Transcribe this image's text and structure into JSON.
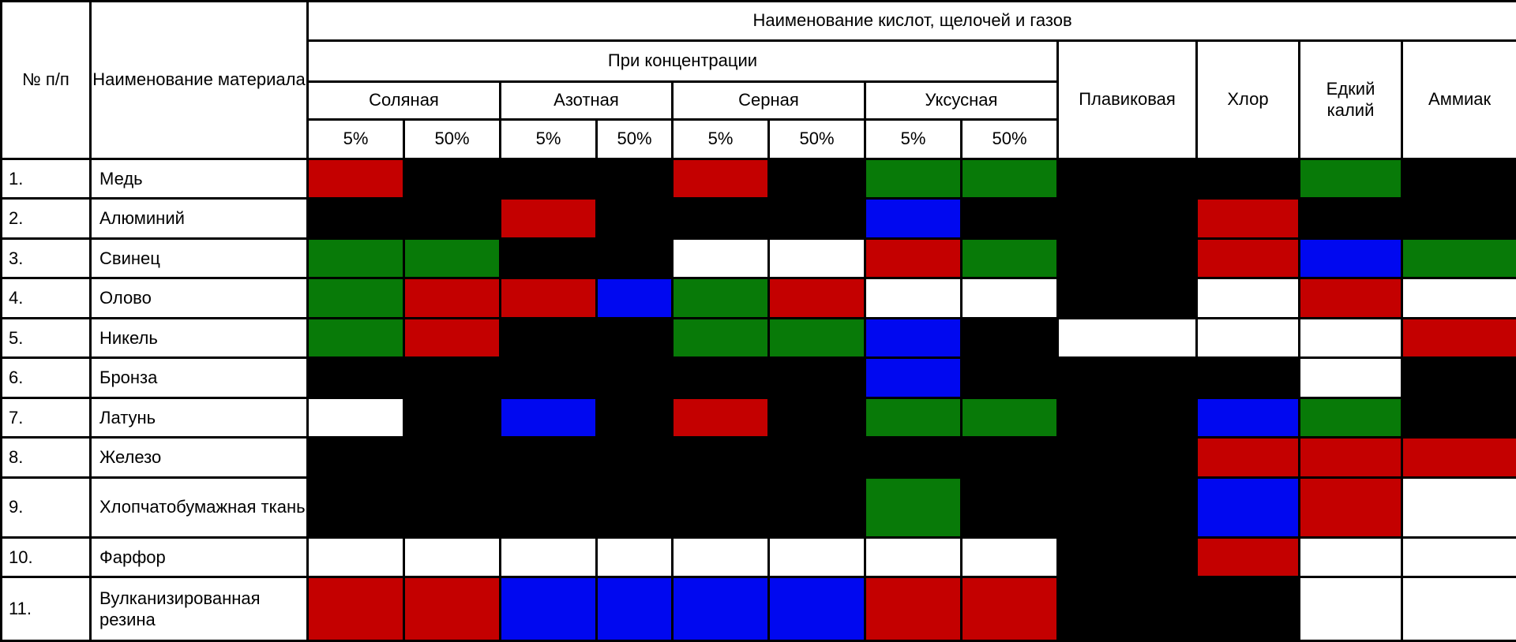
{
  "header": {
    "num": "№ п/п",
    "material": "Наименование материала",
    "group": "Наименование кислот, щелочей и газов",
    "concentration": "При концентрации",
    "acids": [
      "Соляная",
      "Азотная",
      "Серная",
      "Уксусная"
    ],
    "percents": [
      "5%",
      "50%",
      "5%",
      "50%",
      "5%",
      "50%",
      "5%",
      "50%"
    ],
    "other": [
      "Плавиковая",
      "Хлор",
      "Едкий калий",
      "Аммиак"
    ]
  },
  "colors": {
    "black": "#000000",
    "white": "#ffffff",
    "red": "#c40000",
    "green": "#087a08",
    "blue": "#0008f0"
  },
  "rows": [
    {
      "num": "1.",
      "material": "Медь",
      "cells": [
        "red",
        "black",
        "black",
        "black",
        "red",
        "black",
        "green",
        "green",
        "black",
        "black",
        "green",
        "black"
      ]
    },
    {
      "num": "2.",
      "material": "Алюминий",
      "cells": [
        "black",
        "black",
        "red",
        "black",
        "black",
        "black",
        "blue",
        "black",
        "black",
        "red",
        "black",
        "black"
      ]
    },
    {
      "num": "3.",
      "material": "Свинец",
      "cells": [
        "green",
        "green",
        "black",
        "black",
        "white",
        "white",
        "red",
        "green",
        "black",
        "red",
        "blue",
        "green"
      ]
    },
    {
      "num": "4.",
      "material": "Олово",
      "cells": [
        "green",
        "red",
        "red",
        "blue",
        "green",
        "red",
        "white",
        "white",
        "black",
        "white",
        "red",
        "white"
      ]
    },
    {
      "num": "5.",
      "material": "Никель",
      "cells": [
        "green",
        "red",
        "black",
        "black",
        "green",
        "green",
        "blue",
        "black",
        "white",
        "white",
        "white",
        "red"
      ]
    },
    {
      "num": "6.",
      "material": "Бронза",
      "cells": [
        "black",
        "black",
        "black",
        "black",
        "black",
        "black",
        "blue",
        "black",
        "black",
        "black",
        "white",
        "black"
      ]
    },
    {
      "num": "7.",
      "material": "Латунь",
      "cells": [
        "white",
        "black",
        "blue",
        "black",
        "red",
        "black",
        "green",
        "green",
        "black",
        "blue",
        "green",
        "black"
      ]
    },
    {
      "num": "8.",
      "material": "Железо",
      "cells": [
        "black",
        "black",
        "black",
        "black",
        "black",
        "black",
        "black",
        "black",
        "black",
        "red",
        "red",
        "red"
      ]
    },
    {
      "num": "9.",
      "material": "Хлопчатобумажная ткань",
      "cells": [
        "black",
        "black",
        "black",
        "black",
        "black",
        "black",
        "green",
        "black",
        "black",
        "blue",
        "red",
        "white"
      ]
    },
    {
      "num": "10.",
      "material": "Фарфор",
      "cells": [
        "white",
        "white",
        "white",
        "white",
        "white",
        "white",
        "white",
        "white",
        "black",
        "red",
        "white",
        "white"
      ]
    },
    {
      "num": "11.",
      "material": "Вулканизированная резина",
      "cells": [
        "red",
        "red",
        "blue",
        "blue",
        "blue",
        "blue",
        "red",
        "red",
        "black",
        "black",
        "white",
        "white"
      ]
    }
  ]
}
